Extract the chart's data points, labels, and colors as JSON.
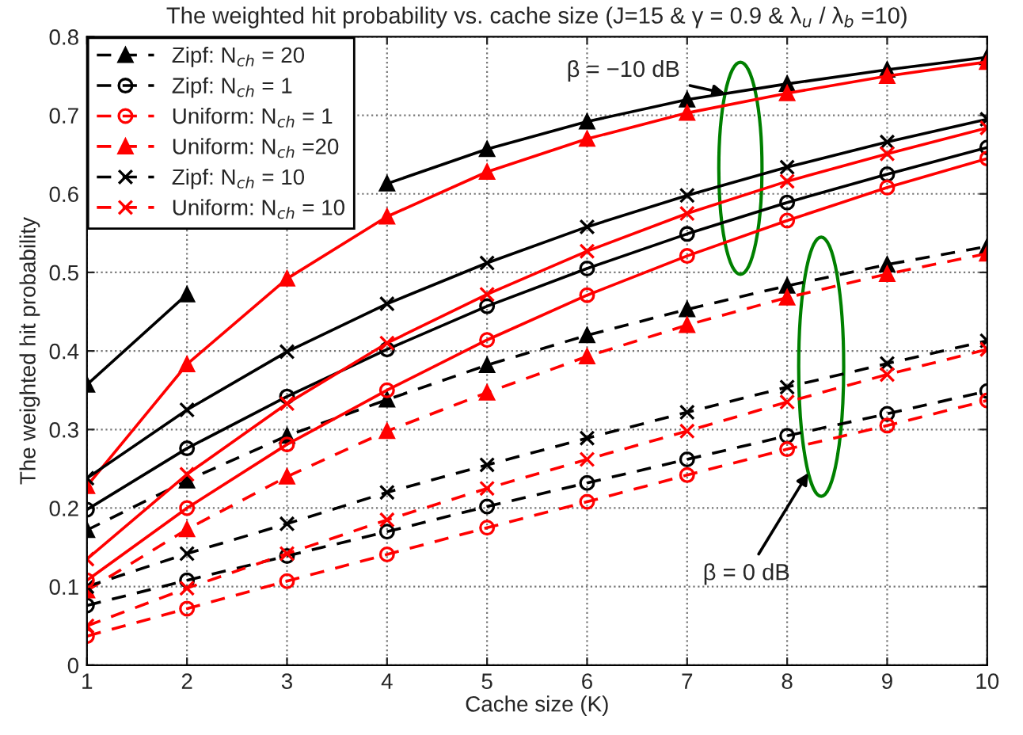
{
  "chart_data": {
    "type": "line",
    "title": "The weighted hit probability vs. cache size (J=15 & γ = 0.9 & λ$_{u}$ / λ$_{b}$ =10)",
    "xlabel": "Cache size (K)",
    "ylabel": "The weighted hit probability",
    "x": [
      1,
      2,
      3,
      4,
      5,
      6,
      7,
      8,
      9,
      10
    ],
    "xlim": [
      1,
      10
    ],
    "xticks": [
      1,
      2,
      3,
      4,
      5,
      6,
      7,
      8,
      9,
      10
    ],
    "ylim": [
      0,
      0.8
    ],
    "yticks": [
      0,
      0.1,
      0.2,
      0.3,
      0.4,
      0.5,
      0.6,
      0.7,
      0.8
    ],
    "grid": true,
    "legend": "top left",
    "annotations": [
      {
        "text": "β = −10 dB",
        "x": 7.38,
        "y": 0.728
      },
      "β = 0 dB"
    ],
    "series": [
      {
        "name": "Zipf: N$_{ch}$ = 20",
        "color": "#000000",
        "marker": "triangle",
        "line_style": "dashed",
        "values": [
          0.172,
          0.235,
          0.292,
          0.338,
          0.382,
          0.42,
          0.453,
          0.483,
          0.51,
          0.533
        ]
      },
      {
        "name": "Zipf: N$_{ch}$ = 1",
        "color": "#000000",
        "marker": "circle",
        "line_style": "dashed",
        "values": [
          0.076,
          0.108,
          0.139,
          0.17,
          0.202,
          0.232,
          0.262,
          0.292,
          0.32,
          0.349
        ]
      },
      {
        "name": "Uniform: N$_{ch}$ = 1",
        "color": "#ff0000",
        "marker": "circle",
        "line_style": "dashed",
        "values": [
          0.037,
          0.072,
          0.107,
          0.141,
          0.175,
          0.208,
          0.242,
          0.275,
          0.305,
          0.337
        ]
      },
      {
        "name": "Uniform: N$_{ch}$ =20",
        "color": "#ff0000",
        "marker": "triangle",
        "line_style": "dashed",
        "values": [
          0.095,
          0.173,
          0.24,
          0.298,
          0.347,
          0.393,
          0.433,
          0.468,
          0.498,
          0.524
        ]
      },
      {
        "name": "Zipf: N$_{ch}$ = 10",
        "color": "#000000",
        "marker": "cross",
        "line_style": "dashed",
        "values": [
          0.1,
          0.142,
          0.18,
          0.22,
          0.255,
          0.289,
          0.322,
          0.354,
          0.384,
          0.413
        ]
      },
      {
        "name": "Uniform: N$_{ch}$ = 10",
        "color": "#ff0000",
        "marker": "cross",
        "line_style": "dashed",
        "values": [
          0.05,
          0.098,
          0.142,
          0.185,
          0.225,
          0.262,
          0.298,
          0.335,
          0.37,
          0.402
        ]
      },
      {
        "color": "#000000",
        "marker": "triangle",
        "line_style": "solid",
        "values": [
          0.357,
          0.472,
          null,
          0.613,
          0.657,
          0.692,
          0.72,
          0.74,
          0.758,
          0.774
        ]
      },
      {
        "color": "#000000",
        "marker": "circle",
        "line_style": "solid",
        "values": [
          0.198,
          0.276,
          0.342,
          0.402,
          0.457,
          0.505,
          0.549,
          0.589,
          0.625,
          0.659
        ]
      },
      {
        "color": "#ff0000",
        "marker": "circle",
        "line_style": "solid",
        "values": [
          0.108,
          0.2,
          0.281,
          0.35,
          0.414,
          0.471,
          0.521,
          0.566,
          0.608,
          0.645
        ]
      },
      {
        "color": "#ff0000",
        "marker": "triangle",
        "line_style": "solid",
        "values": [
          0.228,
          0.383,
          0.492,
          0.571,
          0.628,
          0.67,
          0.703,
          0.728,
          0.75,
          0.768
        ]
      },
      {
        "color": "#000000",
        "marker": "cross",
        "line_style": "solid",
        "values": [
          0.238,
          0.325,
          0.399,
          0.46,
          0.512,
          0.558,
          0.598,
          0.634,
          0.666,
          0.695
        ]
      },
      {
        "color": "#ff0000",
        "marker": "cross",
        "line_style": "solid",
        "values": [
          0.135,
          0.243,
          0.333,
          0.41,
          0.472,
          0.527,
          0.575,
          0.616,
          0.651,
          0.684
        ]
      }
    ]
  }
}
